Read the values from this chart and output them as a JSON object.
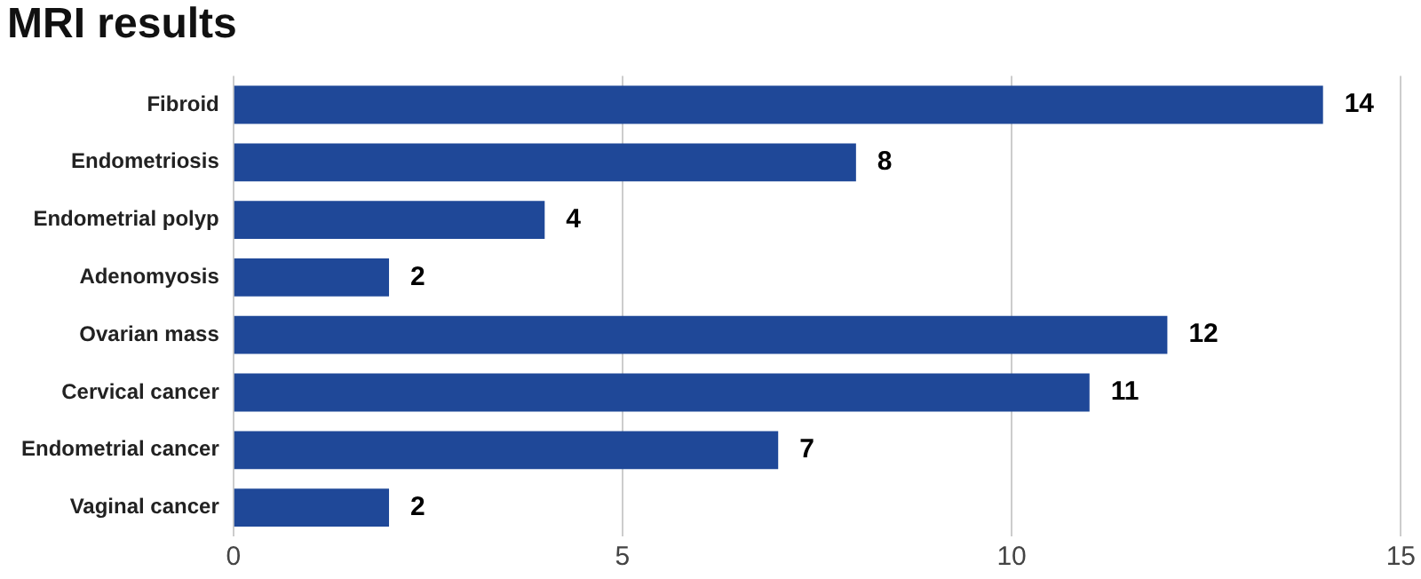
{
  "chart_data": {
    "type": "bar",
    "orientation": "horizontal",
    "title": "MRI results",
    "categories": [
      "Fibroid",
      "Endometriosis",
      "Endometrial polyp",
      "Adenomyosis",
      "Ovarian mass",
      "Cervical cancer",
      "Endometrial cancer",
      "Vaginal cancer"
    ],
    "values": [
      14,
      8,
      4,
      2,
      12,
      11,
      7,
      2
    ],
    "color": "#1f4898",
    "xlim": [
      0,
      15
    ],
    "xticks": [
      0,
      5,
      10,
      15
    ],
    "grid": "x",
    "data_labels": true,
    "legend": false
  }
}
